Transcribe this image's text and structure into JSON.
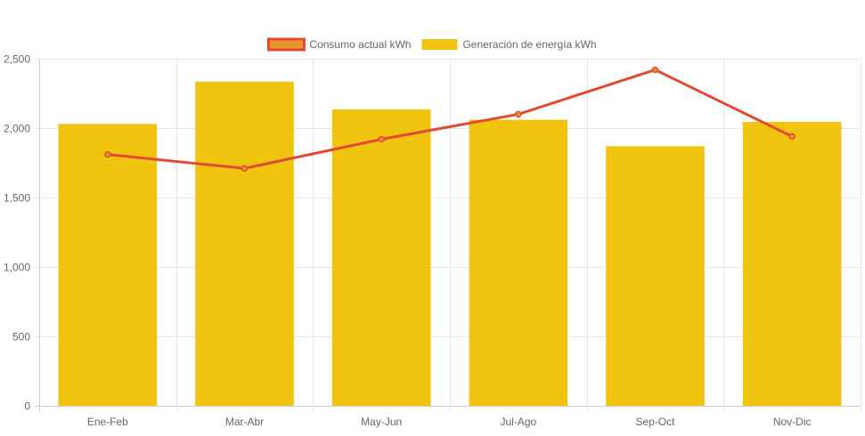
{
  "chart_data": {
    "type": "bar",
    "categories": [
      "Ene-Feb",
      "Mar-Abr",
      "May-Jun",
      "Jul-Ago",
      "Sep-Oct",
      "Nov-Dic"
    ],
    "series": [
      {
        "name": "Consumo actual kWh",
        "kind": "line",
        "values": [
          1810,
          1710,
          1920,
          2100,
          2420,
          1940
        ],
        "color": "#e24a33",
        "fill": "#e8952b"
      },
      {
        "name": "Generación de energía kWh",
        "kind": "bar",
        "values": [
          2030,
          2335,
          2135,
          2060,
          1870,
          2045
        ],
        "color": "#f1c40f"
      }
    ],
    "ylim": [
      0,
      2500
    ],
    "yticks": [
      0,
      500,
      1000,
      1500,
      2000,
      2500
    ],
    "ytick_labels": [
      "0",
      "500",
      "1,000",
      "1,500",
      "2,000",
      "2,500"
    ],
    "grid": true,
    "legend_position": "top-center",
    "title": "",
    "xlabel": "",
    "ylabel": ""
  }
}
